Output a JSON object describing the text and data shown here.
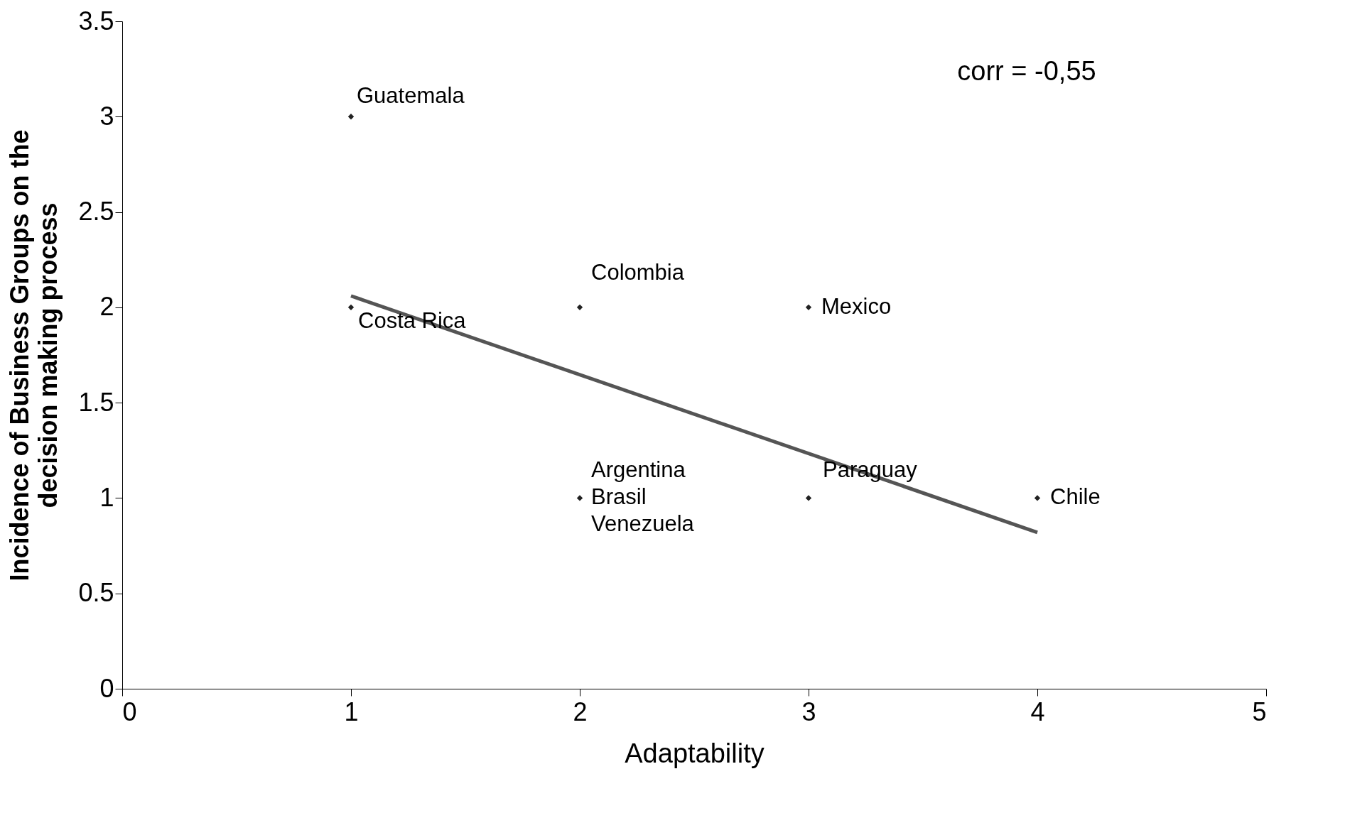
{
  "chart_data": {
    "type": "scatter",
    "xlabel": "Adaptability",
    "ylabel": "Incidence of Business Groups on the\ndecision making process",
    "xlim": [
      0,
      5
    ],
    "xticks": [
      0,
      1,
      2,
      3,
      4,
      5
    ],
    "ylim": [
      0,
      3.5
    ],
    "yticks": [
      0,
      0.5,
      1,
      1.5,
      2,
      2.5,
      3,
      3.5
    ],
    "grid": false,
    "marker": "diamond",
    "series": [
      {
        "color": "#222222",
        "x": [
          1,
          1,
          2,
          3,
          2,
          3,
          4
        ],
        "values": [
          3,
          2,
          2,
          2,
          1,
          1,
          1
        ]
      },
      {
        "type": "line",
        "marker": "none",
        "color": "#555555",
        "x": [
          1,
          4
        ],
        "values": [
          2.06,
          0.82
        ]
      }
    ],
    "annotations": [
      {
        "text": "Guatemala",
        "x": 1,
        "y": 3
      },
      {
        "text": "Costa Rica",
        "x": 1,
        "y": 2
      },
      {
        "text": "Colombia",
        "x": 2,
        "y": 2
      },
      {
        "text": "Mexico",
        "x": 3,
        "y": 2
      },
      {
        "text": "Argentina",
        "x": 2,
        "y": 1
      },
      {
        "text": "Brasil",
        "x": 2,
        "y": 1
      },
      {
        "text": "Venezuela",
        "x": 2,
        "y": 1
      },
      {
        "text": "Paraguay",
        "x": 3,
        "y": 1
      },
      {
        "text": "Chile",
        "x": 4,
        "y": 1
      },
      "corr = -0,55"
    ]
  }
}
